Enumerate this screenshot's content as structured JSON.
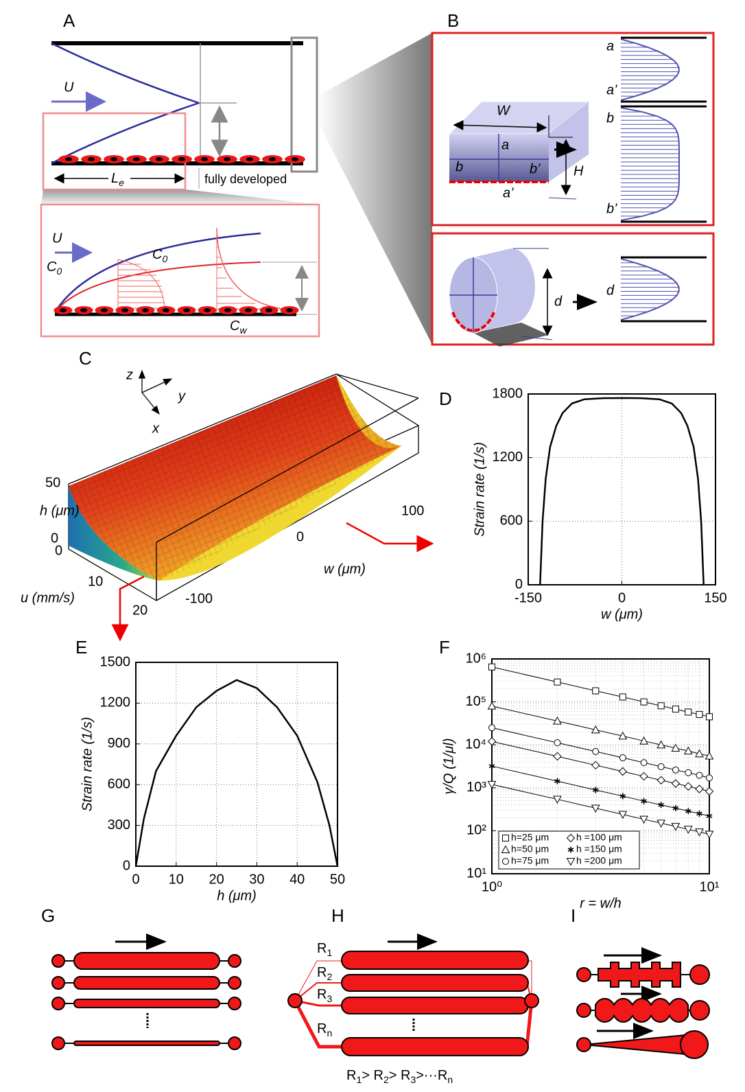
{
  "figure": {
    "panel_labels": [
      "A",
      "B",
      "C",
      "D",
      "E",
      "F",
      "G",
      "H",
      "I"
    ],
    "panel_a": {
      "u": "U",
      "entrance_length": [
        "L",
        "e"
      ],
      "fully_developed": "fully developed",
      "inset_u": "U",
      "inset_c0": [
        "C",
        "0"
      ],
      "profile_c0": [
        "C",
        "0"
      ],
      "wall_c": [
        "C",
        "w"
      ]
    },
    "panel_b": {
      "w": "W",
      "a": "a",
      "b": "b",
      "b_prime": "b’",
      "a_prime": "a’",
      "h": "H",
      "profile_a": "a",
      "profile_a_prime": "a’",
      "profile_b": "b",
      "profile_b_prime": "b’",
      "d": "d",
      "profile_d": "d"
    },
    "panel_c": {
      "axes": [
        "z",
        "y",
        "x"
      ],
      "h_ticks": [
        50,
        0
      ],
      "h_label": "h (μm)",
      "u_ticks": [
        0,
        10,
        20
      ],
      "u_label": "u (mm/s)",
      "w_ticks": [
        100,
        0,
        -100
      ],
      "w_label": "w (μm)"
    },
    "panel_h": {
      "resistors": [
        [
          "R",
          "1"
        ],
        [
          "R",
          "2"
        ],
        [
          "R",
          "3"
        ],
        [
          "R",
          "n"
        ]
      ],
      "relation": [
        [
          "R",
          "1"
        ],
        "> ",
        [
          "R",
          "2"
        ],
        "> ",
        [
          "R",
          "3"
        ],
        ">···",
        [
          "R",
          "n"
        ]
      ]
    }
  },
  "chart_data": [
    {
      "type": "line",
      "xlabel": "w (μm)",
      "ylabel": "Strain rate (1/s)",
      "x": [
        -131,
        -127,
        -122,
        -115,
        -105,
        -95,
        -80,
        -60,
        -30,
        0,
        30,
        60,
        80,
        95,
        105,
        115,
        122,
        127,
        131
      ],
      "values": [
        0,
        600,
        1000,
        1300,
        1500,
        1620,
        1710,
        1750,
        1760,
        1762,
        1760,
        1750,
        1710,
        1620,
        1500,
        1300,
        1000,
        600,
        0
      ],
      "color": "#000000",
      "xlim": [
        -150,
        150
      ],
      "ylim": [
        0,
        1800
      ],
      "xticks": [
        -150,
        0,
        150
      ],
      "yticks": [
        0,
        600,
        1200,
        1800
      ],
      "grid": true
    },
    {
      "type": "line",
      "xlabel": "h (μm)",
      "ylabel": "Strain rate (1/s)",
      "x": [
        0,
        2,
        5,
        10,
        15,
        20,
        25,
        30,
        35,
        40,
        45,
        48,
        50
      ],
      "values": [
        0,
        350,
        700,
        960,
        1170,
        1290,
        1370,
        1310,
        1170,
        960,
        620,
        300,
        0
      ],
      "color": "#000000",
      "xlim": [
        0,
        50
      ],
      "ylim": [
        0,
        1500
      ],
      "xticks": [
        0,
        10,
        20,
        30,
        40,
        50
      ],
      "yticks": [
        0,
        300,
        600,
        900,
        1200,
        1500
      ],
      "grid": true
    },
    {
      "type": "line",
      "xlabel": "r = w/h",
      "ylabel": "γ/Q (1/μl)",
      "log_x": true,
      "log_y": true,
      "grid": true,
      "minor_grid": true,
      "legend": "lower left",
      "x": [
        1,
        2,
        3,
        4,
        5,
        6,
        7,
        8,
        9,
        10
      ],
      "xlim": [
        1,
        10
      ],
      "ylim": [
        10,
        1000000
      ],
      "xticks": [
        {
          "value": 1,
          "label": "10⁰"
        },
        {
          "value": 10,
          "label": "10¹"
        }
      ],
      "yticks": [
        {
          "value": 10,
          "label": "10¹"
        },
        {
          "value": 100,
          "label": "10²"
        },
        {
          "value": 1000,
          "label": "10³"
        },
        {
          "value": 10000,
          "label": "10⁴"
        },
        {
          "value": 100000,
          "label": "10⁵"
        },
        {
          "value": 1000000,
          "label": "10⁶"
        }
      ],
      "series": [
        {
          "name": "h=25 μm",
          "marker": "square",
          "color": "#000000",
          "values": [
            650000,
            290000,
            181000,
            130000,
            100000,
            81000,
            68000,
            58000,
            51000,
            45000
          ]
        },
        {
          "name": "h=50 μm",
          "marker": "triangle",
          "color": "#000000",
          "values": [
            80000,
            35800,
            22300,
            16000,
            12300,
            10000,
            8400,
            7200,
            6200,
            5500
          ]
        },
        {
          "name": "h=75 μm",
          "marker": "circle",
          "color": "#000000",
          "values": [
            25000,
            11200,
            7000,
            5000,
            3850,
            3100,
            2600,
            2250,
            1950,
            1700
          ]
        },
        {
          "name": "h =100 μm",
          "marker": "diamond",
          "color": "#000000",
          "values": [
            12000,
            5400,
            3350,
            2400,
            1850,
            1500,
            1260,
            1080,
            940,
            830
          ]
        },
        {
          "name": "h =150 μm",
          "marker": "star",
          "color": "#000000",
          "values": [
            3200,
            1430,
            890,
            640,
            490,
            400,
            336,
            288,
            250,
            220
          ]
        },
        {
          "name": "h =200 μm",
          "marker": "triangle-down",
          "color": "#000000",
          "values": [
            1200,
            540,
            335,
            240,
            185,
            150,
            126,
            108,
            94,
            83
          ]
        }
      ]
    }
  ]
}
